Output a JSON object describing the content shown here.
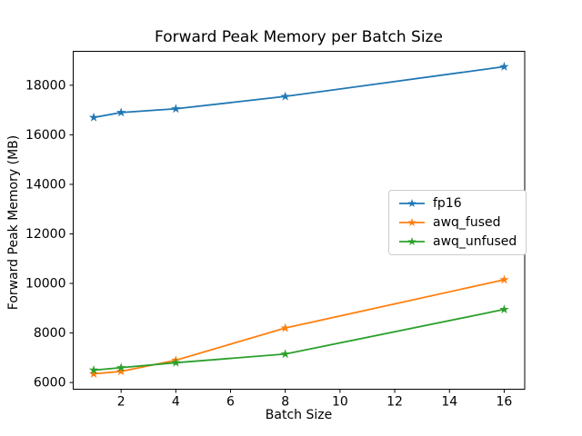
{
  "chart_data": {
    "type": "line",
    "title": "Forward Peak Memory per Batch Size",
    "xlabel": "Batch Size",
    "ylabel": "Forward Peak Memory (MB)",
    "x": [
      1,
      2,
      4,
      8,
      16
    ],
    "series": [
      {
        "name": "fp16",
        "color": "#1f77b4",
        "values": [
          16700,
          16900,
          17050,
          17550,
          18750
        ]
      },
      {
        "name": "awq_fused",
        "color": "#ff7f0e",
        "values": [
          6350,
          6450,
          6900,
          8200,
          10150
        ]
      },
      {
        "name": "awq_unfused",
        "color": "#2ca02c",
        "values": [
          6500,
          6600,
          6800,
          7150,
          8950
        ]
      }
    ],
    "marker": "star",
    "xticks": [
      2,
      4,
      6,
      8,
      10,
      12,
      14,
      16
    ],
    "yticks": [
      6000,
      8000,
      10000,
      12000,
      14000,
      16000,
      18000
    ],
    "xlim": [
      0.25,
      16.75
    ],
    "ylim": [
      5730,
      19370
    ],
    "grid": false,
    "legend_position": "center-right",
    "colors": {
      "background": "#ffffff",
      "axis": "#000000",
      "legend_border": "#cccccc"
    }
  }
}
